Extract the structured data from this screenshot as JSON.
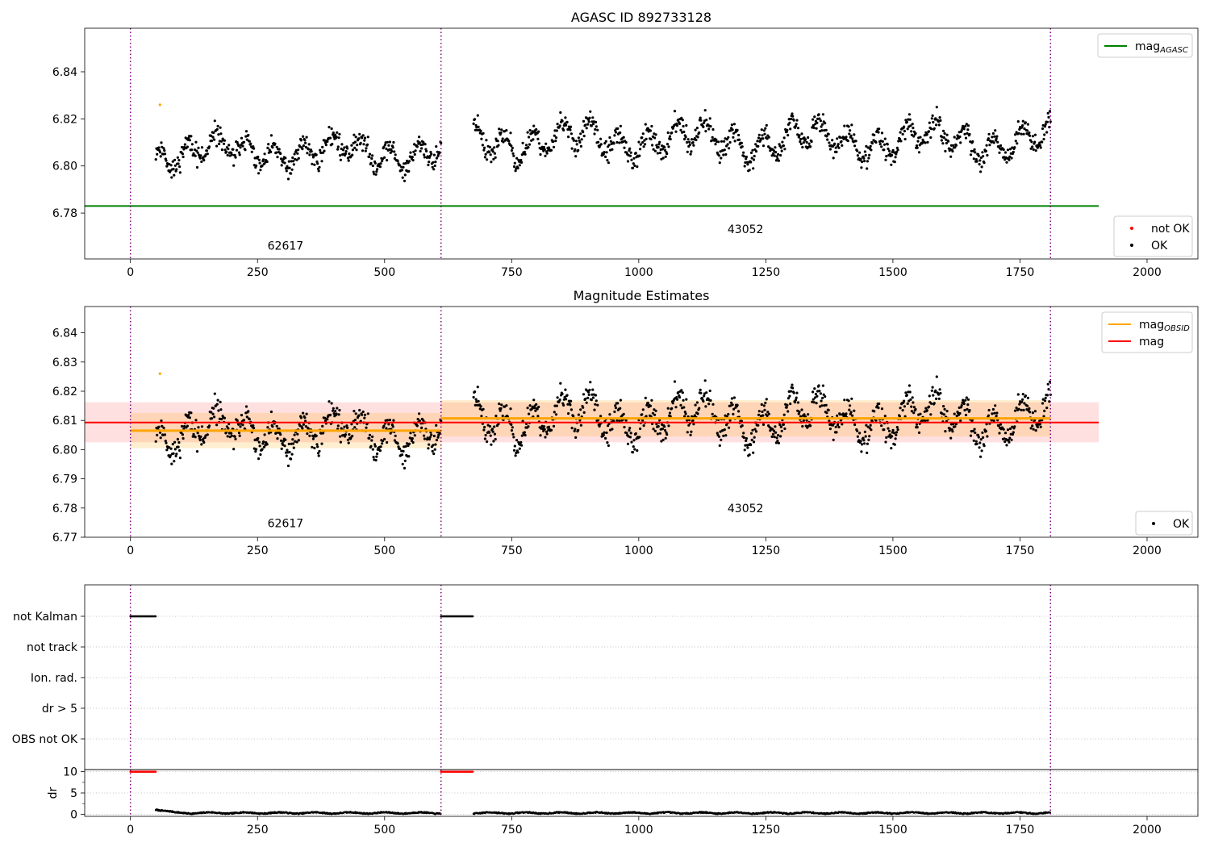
{
  "chart_data": [
    {
      "type": "scatter",
      "title": "AGASC ID 892733128",
      "xlabel": "",
      "ylabel": "",
      "xlim": [
        -90,
        2100
      ],
      "ylim": [
        6.7605,
        6.8585
      ],
      "xticks": [
        0,
        250,
        500,
        750,
        1000,
        1250,
        1500,
        1750,
        2000
      ],
      "xtick_labels": [
        "0",
        "250",
        "500",
        "750",
        "1000",
        "1250",
        "1500",
        "1750",
        "2000"
      ],
      "yticks": [
        6.78,
        6.8,
        6.82,
        6.84
      ],
      "ytick_labels": [
        "6.78",
        "6.80",
        "6.82",
        "6.84"
      ],
      "obsid_boundaries": [
        0,
        611,
        1810
      ],
      "obsid_labels": [
        {
          "text": "62617",
          "x": 305,
          "y": 6.7645
        },
        {
          "text": "43052",
          "x": 1210,
          "y": 6.7715
        }
      ],
      "series": [
        {
          "name": "OK",
          "color": "#000000",
          "segments": [
            {
              "x_start": 50,
              "x_end": 611,
              "points": 470,
              "mean": 6.806,
              "amplitude": 0.008,
              "noise": 0.0045,
              "seed": 11
            },
            {
              "x_start": 675,
              "x_end": 1810,
              "points": 950,
              "mean": 6.811,
              "amplitude": 0.009,
              "noise": 0.0045,
              "seed": 23
            }
          ]
        },
        {
          "name": "not OK",
          "color": "#ff0000",
          "points": []
        },
        {
          "name": "flagged",
          "color": "#ffa500",
          "points": [
            [
              58,
              6.826
            ]
          ]
        }
      ],
      "lines": [
        {
          "name": "mag_AGASC",
          "color": "#008000",
          "y": 6.783,
          "x_range": [
            -90,
            1905
          ]
        }
      ],
      "legend": [
        {
          "label": "mag",
          "subscript": "AGASC",
          "kind": "line",
          "color": "#008000",
          "placement": "upper-right"
        },
        {
          "label": "not OK",
          "kind": "dot",
          "color": "#ff0000",
          "placement": "lower-right"
        },
        {
          "label": "OK",
          "kind": "dot",
          "color": "#000000",
          "placement": "lower-right"
        }
      ],
      "grid": false
    },
    {
      "type": "scatter",
      "title": "Magnitude Estimates",
      "xlabel": "",
      "ylabel": "",
      "xlim": [
        -90,
        2100
      ],
      "ylim": [
        6.77,
        6.849
      ],
      "xticks": [
        0,
        250,
        500,
        750,
        1000,
        1250,
        1500,
        1750,
        2000
      ],
      "xtick_labels": [
        "0",
        "250",
        "500",
        "750",
        "1000",
        "1250",
        "1500",
        "1750",
        "2000"
      ],
      "yticks": [
        6.77,
        6.78,
        6.79,
        6.8,
        6.81,
        6.82,
        6.83,
        6.84
      ],
      "ytick_labels": [
        "6.77",
        "6.78",
        "6.79",
        "6.80",
        "6.81",
        "6.82",
        "6.83",
        "6.84"
      ],
      "obsid_boundaries": [
        0,
        611,
        1810
      ],
      "obsid_labels": [
        {
          "text": "62617",
          "x": 305,
          "y": 6.7735
        },
        {
          "text": "43052",
          "x": 1210,
          "y": 6.7785
        }
      ],
      "bands": [
        {
          "name": "mag",
          "color": "#ff0000",
          "opacity": 0.12,
          "x_range": [
            -90,
            1905
          ],
          "y_low": 6.8025,
          "y_high": 6.8162
        },
        {
          "name": "mag_OBSID 62617",
          "color": "#ffa500",
          "opacity": 0.18,
          "x_range": [
            0,
            611
          ],
          "y_low": 6.8005,
          "y_high": 6.8126
        },
        {
          "name": "mag_OBSID 43052",
          "color": "#ffa500",
          "opacity": 0.18,
          "x_range": [
            611,
            1810
          ],
          "y_low": 6.8045,
          "y_high": 6.817
        }
      ],
      "lines": [
        {
          "name": "mag",
          "color": "#ff0000",
          "y": 6.8093,
          "x_range": [
            -90,
            1905
          ]
        },
        {
          "name": "mag_OBSID 62617",
          "color": "#ffa500",
          "y": 6.8065,
          "x_range": [
            0,
            611
          ]
        },
        {
          "name": "mag_OBSID 43052",
          "color": "#ffa500",
          "y": 6.8107,
          "x_range": [
            611,
            1810
          ]
        }
      ],
      "series": [
        {
          "name": "OK",
          "color": "#000000",
          "segments": [
            {
              "x_start": 50,
              "x_end": 611,
              "points": 470,
              "mean": 6.806,
              "amplitude": 0.008,
              "noise": 0.0045,
              "seed": 11
            },
            {
              "x_start": 675,
              "x_end": 1810,
              "points": 950,
              "mean": 6.811,
              "amplitude": 0.009,
              "noise": 0.0045,
              "seed": 23
            }
          ]
        },
        {
          "name": "flagged",
          "color": "#ffa500",
          "points": [
            [
              58,
              6.826
            ]
          ]
        }
      ],
      "legend": [
        {
          "label": "mag",
          "subscript": "OBSID",
          "kind": "line",
          "color": "#ffa500",
          "placement": "upper-right"
        },
        {
          "label": "mag",
          "kind": "line",
          "color": "#ff0000",
          "placement": "upper-right"
        },
        {
          "label": "OK",
          "kind": "dot",
          "color": "#000000",
          "placement": "lower-right"
        }
      ],
      "grid": false
    },
    {
      "type": "scatter",
      "title": "",
      "xlabel": "",
      "ylabel": "",
      "xlim": [
        -90,
        2100
      ],
      "categories": [
        "not Kalman",
        "not track",
        "Ion. rad.",
        "dr > 5",
        "OBS not OK"
      ],
      "obsid_boundaries": [
        0,
        611,
        1810
      ],
      "flags": [
        {
          "category": "not Kalman",
          "x_ranges": [
            [
              0,
              50
            ],
            [
              611,
              675
            ]
          ]
        },
        {
          "category": "not track",
          "x_ranges": []
        },
        {
          "category": "Ion. rad.",
          "x_ranges": []
        },
        {
          "category": "dr > 5",
          "x_ranges": []
        },
        {
          "category": "OBS not OK",
          "x_ranges": []
        }
      ],
      "grid": true
    },
    {
      "type": "scatter",
      "title": "",
      "xlabel": "",
      "ylabel": "dr",
      "xlim": [
        -90,
        2100
      ],
      "ylim": [
        -0.5,
        10.5
      ],
      "xticks": [
        0,
        250,
        500,
        750,
        1000,
        1250,
        1500,
        1750,
        2000
      ],
      "xtick_labels": [
        "0",
        "250",
        "500",
        "750",
        "1000",
        "1250",
        "1500",
        "1750",
        "2000"
      ],
      "yticks": [
        0,
        5,
        10
      ],
      "ytick_labels": [
        "0",
        "5",
        "10"
      ],
      "obsid_boundaries": [
        0,
        611,
        1810
      ],
      "series": [
        {
          "name": "dr clipped",
          "color": "#ff0000",
          "y": 10,
          "x_ranges": [
            [
              0,
              50
            ],
            [
              611,
              675
            ]
          ]
        },
        {
          "name": "dr",
          "color": "#000000",
          "x_ranges": [
            [
              50,
              611
            ],
            [
              675,
              1810
            ]
          ],
          "typical": 0.3,
          "start_peak": 1.2
        }
      ],
      "grid": true
    }
  ]
}
